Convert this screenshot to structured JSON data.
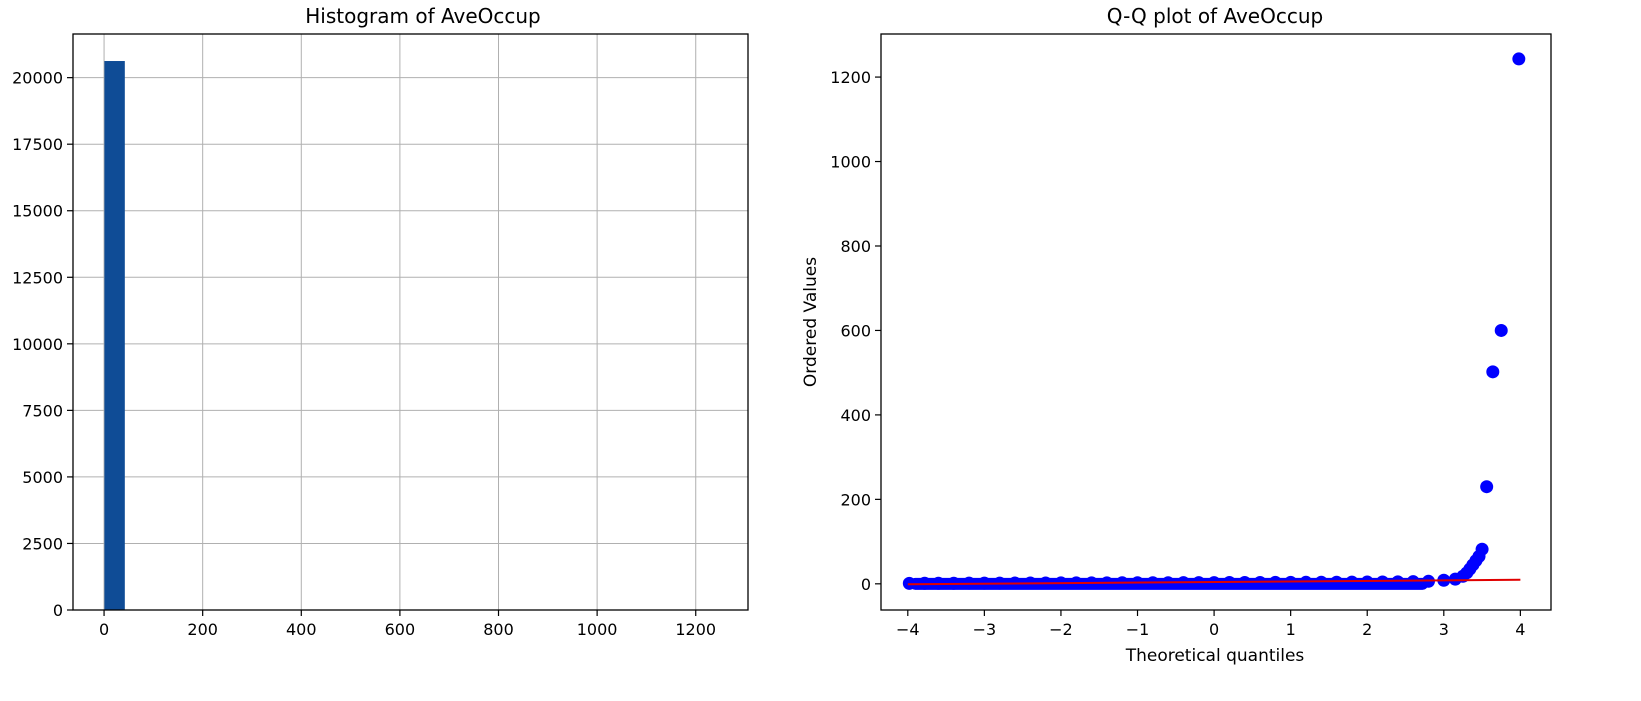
{
  "colors": {
    "hist_bar": "#0f4c96",
    "qq_point": "#0000ff",
    "fit_line": "#e00000",
    "grid": "#b0b0b0",
    "axes": "#000000"
  },
  "chart_data": [
    {
      "type": "bar",
      "subtype": "histogram",
      "title": "Histogram of AveOccup",
      "xlabel": "",
      "ylabel": "",
      "grid": true,
      "xlim": [
        -63,
        1306
      ],
      "ylim": [
        0,
        21640
      ],
      "xticks": [
        0,
        200,
        400,
        600,
        800,
        1000,
        1200
      ],
      "xtick_labels": [
        "0",
        "200",
        "400",
        "600",
        "800",
        "1000",
        "1200"
      ],
      "yticks": [
        0,
        2500,
        5000,
        7500,
        10000,
        12500,
        15000,
        17500,
        20000
      ],
      "ytick_labels": [
        "0",
        "2500",
        "5000",
        "7500",
        "10000",
        "12500",
        "15000",
        "17500",
        "20000"
      ],
      "bins": [
        {
          "x0": 0.69,
          "x1": 42.09,
          "count": 20625
        },
        {
          "x0": 42.09,
          "x1": 83.49,
          "count": 8
        },
        {
          "x0": 83.49,
          "x1": 124.89,
          "count": 0
        },
        {
          "x0": 124.89,
          "x1": 166.29,
          "count": 0
        },
        {
          "x0": 166.29,
          "x1": 207.69,
          "count": 0
        },
        {
          "x0": 207.69,
          "x1": 249.09,
          "count": 1
        },
        {
          "x0": 249.09,
          "x1": 290.49,
          "count": 0
        },
        {
          "x0": 290.49,
          "x1": 331.89,
          "count": 0
        },
        {
          "x0": 331.89,
          "x1": 373.29,
          "count": 0
        },
        {
          "x0": 373.29,
          "x1": 414.69,
          "count": 0
        },
        {
          "x0": 414.69,
          "x1": 456.09,
          "count": 0
        },
        {
          "x0": 456.09,
          "x1": 497.49,
          "count": 0
        },
        {
          "x0": 497.49,
          "x1": 538.89,
          "count": 1
        },
        {
          "x0": 538.89,
          "x1": 580.29,
          "count": 0
        },
        {
          "x0": 580.29,
          "x1": 621.69,
          "count": 1
        },
        {
          "x0": 621.69,
          "x1": 663.09,
          "count": 0
        },
        {
          "x0": 663.09,
          "x1": 704.49,
          "count": 0
        },
        {
          "x0": 704.49,
          "x1": 745.89,
          "count": 0
        },
        {
          "x0": 745.89,
          "x1": 787.29,
          "count": 0
        },
        {
          "x0": 787.29,
          "x1": 828.69,
          "count": 0
        },
        {
          "x0": 828.69,
          "x1": 870.09,
          "count": 0
        },
        {
          "x0": 870.09,
          "x1": 911.49,
          "count": 0
        },
        {
          "x0": 911.49,
          "x1": 952.89,
          "count": 0
        },
        {
          "x0": 952.89,
          "x1": 994.29,
          "count": 0
        },
        {
          "x0": 994.29,
          "x1": 1035.69,
          "count": 0
        },
        {
          "x0": 1035.69,
          "x1": 1077.09,
          "count": 0
        },
        {
          "x0": 1077.09,
          "x1": 1118.49,
          "count": 0
        },
        {
          "x0": 1118.49,
          "x1": 1159.89,
          "count": 0
        },
        {
          "x0": 1159.89,
          "x1": 1201.29,
          "count": 0
        },
        {
          "x0": 1201.29,
          "x1": 1242.69,
          "count": 1
        }
      ]
    },
    {
      "type": "scatter",
      "subtype": "qq-plot",
      "title": "Q-Q plot of AveOccup",
      "xlabel": "Theoretical quantiles",
      "ylabel": "Ordered Values",
      "grid": false,
      "xlim": [
        -4.35,
        4.4
      ],
      "ylim": [
        -62,
        1302
      ],
      "xticks": [
        -4,
        -3,
        -2,
        -1,
        0,
        1,
        2,
        3,
        4
      ],
      "xtick_labels": [
        "−4",
        "−3",
        "−2",
        "−1",
        "0",
        "1",
        "2",
        "3",
        "4"
      ],
      "yticks": [
        0,
        200,
        400,
        600,
        800,
        1000,
        1200
      ],
      "ytick_labels": [
        "0",
        "200",
        "400",
        "600",
        "800",
        "1000",
        "1200"
      ],
      "series": [
        {
          "kind": "points",
          "points": [
            [
              -3.98,
              1.0
            ],
            [
              -3.78,
              1.2
            ],
            [
              -3.6,
              1.3
            ],
            [
              -3.4,
              1.4
            ],
            [
              -3.2,
              1.5
            ],
            [
              -3.0,
              1.6
            ],
            [
              -2.8,
              1.7
            ],
            [
              -2.6,
              1.8
            ],
            [
              -2.4,
              1.9
            ],
            [
              -2.2,
              2.0
            ],
            [
              -2.0,
              2.1
            ],
            [
              -1.8,
              2.2
            ],
            [
              -1.6,
              2.3
            ],
            [
              -1.4,
              2.35
            ],
            [
              -1.2,
              2.4
            ],
            [
              -1.0,
              2.5
            ],
            [
              -0.8,
              2.55
            ],
            [
              -0.6,
              2.65
            ],
            [
              -0.4,
              2.75
            ],
            [
              -0.2,
              2.85
            ],
            [
              0.0,
              2.95
            ],
            [
              0.2,
              3.05
            ],
            [
              0.4,
              3.15
            ],
            [
              0.6,
              3.25
            ],
            [
              0.8,
              3.35
            ],
            [
              1.0,
              3.5
            ],
            [
              1.2,
              3.6
            ],
            [
              1.4,
              3.7
            ],
            [
              1.6,
              3.85
            ],
            [
              1.8,
              4.0
            ],
            [
              2.0,
              4.2
            ],
            [
              2.2,
              4.4
            ],
            [
              2.4,
              4.7
            ],
            [
              2.6,
              5.1
            ],
            [
              2.8,
              6.0
            ],
            [
              3.0,
              8.5
            ],
            [
              3.15,
              11
            ],
            [
              3.25,
              18
            ],
            [
              3.3,
              26
            ],
            [
              3.34,
              35
            ],
            [
              3.38,
              45
            ],
            [
              3.42,
              55
            ],
            [
              3.46,
              65
            ],
            [
              3.5,
              82
            ],
            [
              3.56,
              230
            ],
            [
              3.64,
              502
            ],
            [
              3.75,
              600
            ],
            [
              3.98,
              1243
            ]
          ]
        },
        {
          "kind": "fit-line",
          "points": [
            [
              -4.0,
              -1.0
            ],
            [
              4.0,
              9.5
            ]
          ]
        }
      ]
    }
  ]
}
